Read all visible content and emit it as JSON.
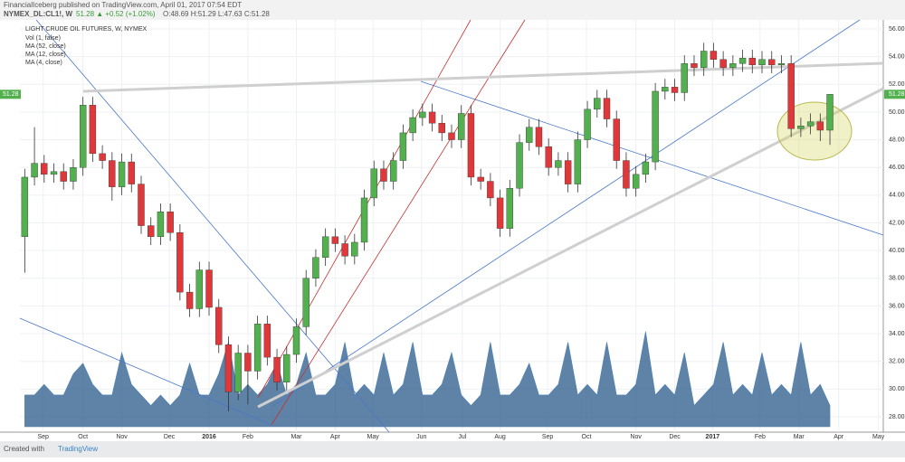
{
  "header": {
    "publisher": "FinancialIceberg published on TradingView.com, April 01, 2017 07:54 EDT",
    "symbol": "NYMEX_DL:CL1!, W",
    "quote": "51.28 ▲ +0.52 (+1.02%)",
    "ohlc": "O:48.69 H:51.29 L:47.63 C:51.28"
  },
  "footer": {
    "created": "Created with",
    "brand": "TradingView"
  },
  "chart_data": {
    "type": "candlestick",
    "title": "LIGHT CRUDE OIL FUTURES, W, NYMEX",
    "indicators": [
      "Vol (1, false)",
      "MA (52, close)",
      "MA (12, close)",
      "MA (4, close)"
    ],
    "up_color": "#53b04f",
    "down_color": "#e0383a",
    "volume_color": "#2a5a8a",
    "xlim": [
      -0.5,
      88.5
    ],
    "xticks": [
      {
        "value": 1.9,
        "label": "Sep"
      },
      {
        "value": 6,
        "label": "Oct"
      },
      {
        "value": 10,
        "label": "Nov"
      },
      {
        "value": 14.9,
        "label": "Dec"
      },
      {
        "value": 19,
        "label": "2016"
      },
      {
        "value": 23,
        "label": "Feb"
      },
      {
        "value": 28,
        "label": "Mar"
      },
      {
        "value": 32,
        "label": "Apr"
      },
      {
        "value": 35.9,
        "label": "May"
      },
      {
        "value": 40.9,
        "label": "Jun"
      },
      {
        "value": 45.1,
        "label": "Jul"
      },
      {
        "value": 49,
        "label": "Aug"
      },
      {
        "value": 53.9,
        "label": "Sep"
      },
      {
        "value": 57.9,
        "label": "Oct"
      },
      {
        "value": 63,
        "label": "Nov"
      },
      {
        "value": 67,
        "label": "Dec"
      },
      {
        "value": 70.9,
        "label": "2017"
      },
      {
        "value": 75.8,
        "label": "Feb"
      },
      {
        "value": 79.8,
        "label": "Mar"
      },
      {
        "value": 83.9,
        "label": "Apr"
      },
      {
        "value": 88,
        "label": "May"
      }
    ],
    "ylim": [
      28,
      56
    ],
    "yticks": [
      {
        "value": 56,
        "label": "56.00"
      },
      {
        "value": 54,
        "label": "54.00"
      },
      {
        "value": 52,
        "label": "52.00"
      },
      {
        "value": 50,
        "label": "50.00"
      },
      {
        "value": 48,
        "label": "48.00"
      },
      {
        "value": 46,
        "label": "46.00"
      },
      {
        "value": 44,
        "label": "44.00"
      },
      {
        "value": 42,
        "label": "42.00"
      },
      {
        "value": 40,
        "label": "40.00"
      },
      {
        "value": 38,
        "label": "38.00"
      },
      {
        "value": 36,
        "label": "36.00"
      },
      {
        "value": 34,
        "label": "34.00"
      },
      {
        "value": 32,
        "label": "32.00"
      },
      {
        "value": 30,
        "label": "30.00"
      },
      {
        "value": 28,
        "label": "28.00"
      }
    ],
    "grid": true,
    "vlim": [
      0,
      10
    ],
    "open": [
      41.0,
      45.3,
      46.3,
      45.5,
      45.7,
      45.0,
      46.0,
      50.5,
      47.0,
      46.5,
      44.6,
      46.4,
      44.8,
      41.8,
      41.0,
      42.8,
      41.3,
      37.0,
      35.8,
      38.6,
      35.9,
      33.2,
      29.8,
      32.6,
      31.3,
      34.7,
      32.3,
      30.5,
      32.5,
      34.5,
      38.0,
      39.5,
      41.0,
      40.5,
      39.6,
      40.6,
      43.8,
      45.9,
      45.0,
      46.5,
      48.5,
      49.6,
      50.0,
      49.2,
      48.5,
      48.0,
      49.9,
      45.3,
      45.0,
      43.8,
      41.6,
      44.5,
      47.8,
      48.9,
      47.5,
      46.0,
      46.5,
      44.8,
      48.0,
      50.2,
      51.0,
      49.5,
      46.5,
      44.5,
      45.5,
      46.4,
      51.5,
      51.8,
      51.4,
      53.5,
      53.2,
      54.4,
      53.8,
      53.2,
      53.5,
      53.9,
      53.4,
      53.8,
      53.4,
      53.5,
      48.8,
      49.0,
      49.3,
      48.69
    ],
    "high": [
      45.9,
      48.9,
      46.9,
      46.3,
      46.3,
      46.6,
      51.1,
      51.1,
      47.6,
      47.1,
      47.0,
      47.0,
      45.4,
      42.4,
      43.4,
      43.4,
      41.9,
      37.6,
      39.2,
      39.2,
      36.5,
      33.8,
      33.2,
      33.2,
      35.3,
      35.3,
      32.9,
      33.1,
      35.1,
      38.6,
      40.1,
      41.6,
      41.6,
      41.1,
      41.2,
      44.4,
      46.5,
      46.5,
      47.1,
      49.1,
      50.2,
      50.6,
      50.6,
      49.8,
      49.1,
      50.5,
      50.5,
      45.9,
      45.6,
      44.4,
      45.1,
      48.4,
      49.5,
      49.5,
      48.1,
      47.1,
      47.1,
      48.6,
      50.8,
      51.6,
      51.6,
      50.1,
      47.1,
      46.1,
      47.0,
      52.1,
      52.4,
      52.4,
      54.1,
      54.1,
      55.0,
      55.0,
      54.4,
      54.1,
      54.5,
      54.5,
      54.4,
      54.4,
      54.1,
      54.1,
      49.6,
      49.9,
      49.9,
      51.29
    ],
    "low": [
      38.4,
      44.7,
      44.9,
      44.9,
      44.4,
      44.4,
      45.4,
      46.4,
      45.9,
      43.6,
      44.0,
      44.2,
      41.2,
      40.4,
      40.4,
      40.7,
      36.4,
      35.2,
      35.2,
      35.3,
      32.6,
      28.4,
      29.2,
      28.9,
      30.7,
      31.7,
      29.9,
      29.9,
      31.9,
      33.9,
      37.4,
      38.9,
      39.9,
      39.0,
      39.0,
      40.0,
      43.2,
      44.4,
      44.4,
      45.9,
      47.9,
      49.0,
      48.6,
      47.9,
      47.4,
      47.4,
      44.7,
      44.4,
      43.2,
      41.0,
      41.0,
      43.9,
      47.2,
      46.9,
      45.4,
      45.4,
      44.2,
      44.2,
      47.4,
      49.6,
      48.9,
      45.9,
      43.9,
      43.9,
      44.9,
      45.8,
      50.9,
      50.8,
      50.8,
      52.6,
      52.6,
      53.2,
      52.6,
      52.6,
      52.9,
      52.8,
      52.8,
      52.8,
      52.8,
      48.2,
      48.2,
      48.4,
      47.9,
      47.63
    ],
    "close": [
      45.3,
      46.3,
      45.5,
      45.7,
      45.0,
      46.0,
      50.5,
      47.0,
      46.5,
      44.6,
      46.4,
      44.8,
      41.8,
      41.0,
      42.8,
      41.3,
      37.0,
      35.8,
      38.6,
      35.9,
      33.2,
      29.8,
      32.6,
      31.3,
      34.7,
      32.3,
      30.5,
      32.5,
      34.5,
      38.0,
      39.5,
      41.0,
      40.5,
      39.6,
      40.6,
      43.8,
      45.9,
      45.0,
      46.5,
      48.5,
      49.6,
      50.0,
      49.2,
      48.5,
      48.0,
      49.9,
      45.3,
      45.0,
      43.8,
      41.6,
      44.5,
      47.8,
      48.9,
      47.5,
      46.0,
      46.5,
      44.8,
      48.0,
      50.2,
      51.0,
      49.5,
      46.5,
      44.5,
      45.5,
      46.4,
      51.5,
      51.8,
      51.4,
      53.5,
      53.2,
      54.4,
      53.8,
      53.2,
      53.5,
      53.9,
      53.4,
      53.8,
      53.4,
      53.5,
      48.8,
      49.0,
      49.3,
      48.69,
      51.28
    ],
    "volume": [
      3,
      3,
      4,
      3,
      3,
      5,
      6,
      4,
      3,
      3,
      7,
      4,
      3,
      2,
      3,
      2,
      3,
      6,
      3,
      3,
      5,
      8,
      3,
      4,
      3,
      4,
      6,
      3,
      4,
      7,
      3,
      3,
      4,
      8,
      3,
      4,
      3,
      7,
      3,
      4,
      8,
      3,
      3,
      4,
      7,
      3,
      2,
      3,
      8,
      3,
      3,
      4,
      6,
      3,
      3,
      4,
      8,
      3,
      4,
      3,
      8,
      3,
      3,
      4,
      9,
      3,
      4,
      3,
      7,
      2,
      3,
      4,
      8,
      3,
      4,
      3,
      7,
      3,
      4,
      3,
      8,
      3,
      4,
      2
    ]
  }
}
